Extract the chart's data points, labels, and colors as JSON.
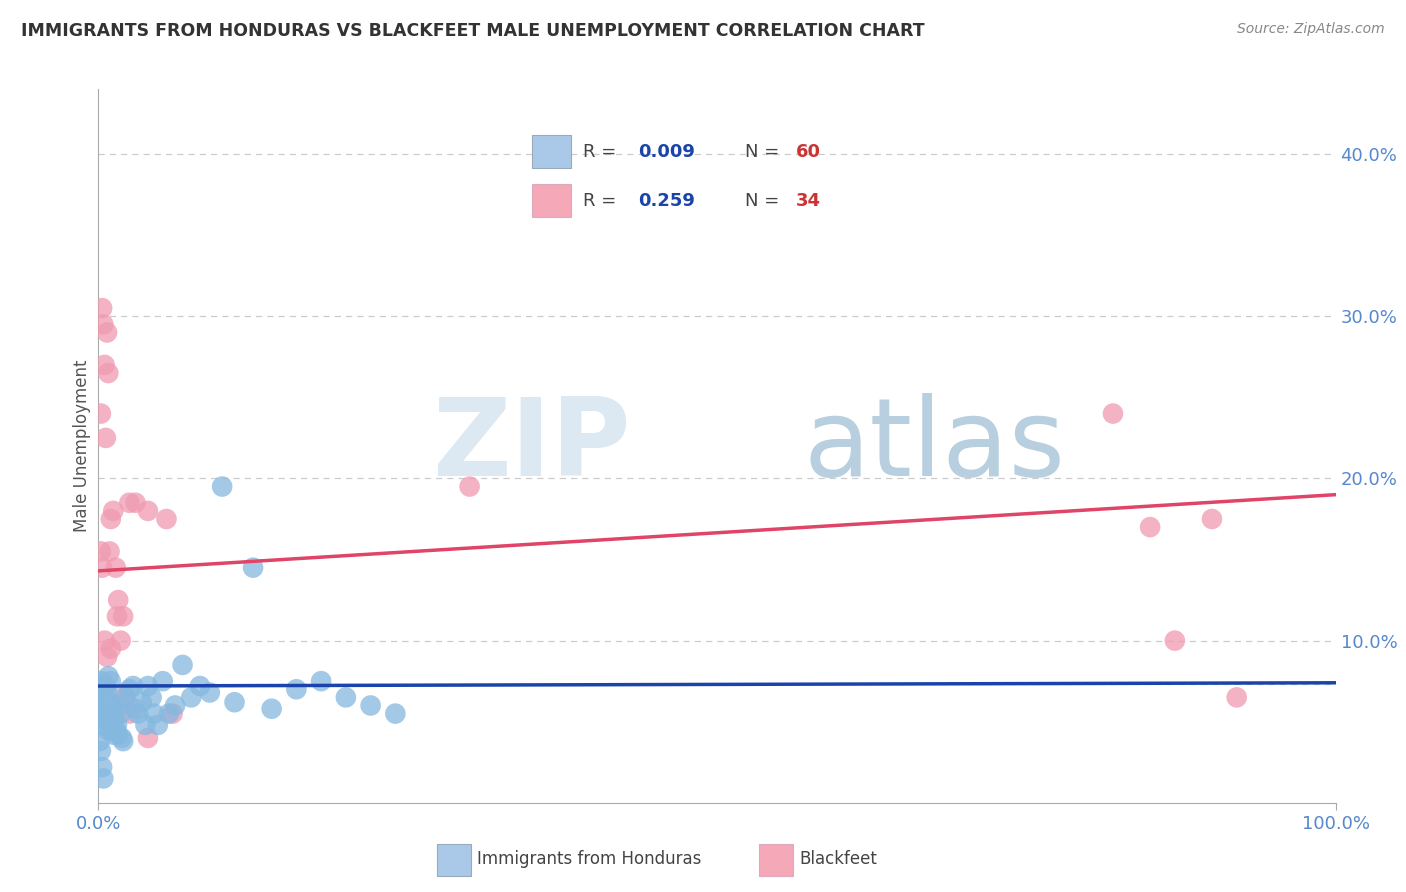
{
  "title": "IMMIGRANTS FROM HONDURAS VS BLACKFEET MALE UNEMPLOYMENT CORRELATION CHART",
  "source_text": "Source: ZipAtlas.com",
  "ylabel": "Male Unemployment",
  "xlim": [
    0,
    1.0
  ],
  "ylim": [
    0.0,
    0.44
  ],
  "legend_r1": "R = ",
  "legend_v1": "0.009",
  "legend_n1": "N = ",
  "legend_n1v": "60",
  "legend_r2": "R = ",
  "legend_v2": "0.259",
  "legend_n2": "N = ",
  "legend_n2v": "34",
  "cat1": "Immigrants from Honduras",
  "cat2": "Blackfeet",
  "blue_patch_color": "#aac8e8",
  "pink_patch_color": "#f4a8b8",
  "blue_color": "#85b8df",
  "pink_color": "#f09ab0",
  "blue_line_color": "#1a44aa",
  "pink_line_color": "#e04466",
  "axis_color": "#5588cc",
  "grid_color": "#cccccc",
  "title_color": "#333333",
  "source_color": "#888888",
  "watermark_zip_color": "#dce8f2",
  "watermark_atlas_color": "#b8cfdf",
  "blue_scatter_x": [
    0.001,
    0.002,
    0.002,
    0.003,
    0.003,
    0.004,
    0.004,
    0.005,
    0.005,
    0.006,
    0.006,
    0.007,
    0.007,
    0.008,
    0.008,
    0.009,
    0.01,
    0.01,
    0.011,
    0.012,
    0.012,
    0.013,
    0.014,
    0.015,
    0.016,
    0.017,
    0.018,
    0.019,
    0.02,
    0.022,
    0.025,
    0.028,
    0.03,
    0.032,
    0.035,
    0.038,
    0.04,
    0.043,
    0.045,
    0.048,
    0.052,
    0.057,
    0.062,
    0.068,
    0.075,
    0.082,
    0.09,
    0.1,
    0.11,
    0.125,
    0.14,
    0.16,
    0.18,
    0.2,
    0.22,
    0.24,
    0.001,
    0.002,
    0.003,
    0.004
  ],
  "blue_scatter_y": [
    0.068,
    0.072,
    0.06,
    0.075,
    0.055,
    0.07,
    0.048,
    0.065,
    0.058,
    0.072,
    0.052,
    0.068,
    0.045,
    0.078,
    0.05,
    0.062,
    0.055,
    0.075,
    0.048,
    0.058,
    0.042,
    0.052,
    0.045,
    0.048,
    0.042,
    0.06,
    0.055,
    0.04,
    0.038,
    0.065,
    0.07,
    0.072,
    0.058,
    0.055,
    0.062,
    0.048,
    0.072,
    0.065,
    0.055,
    0.048,
    0.075,
    0.055,
    0.06,
    0.085,
    0.065,
    0.072,
    0.068,
    0.195,
    0.062,
    0.145,
    0.058,
    0.07,
    0.075,
    0.065,
    0.06,
    0.055,
    0.038,
    0.032,
    0.022,
    0.015
  ],
  "pink_scatter_x": [
    0.002,
    0.003,
    0.004,
    0.005,
    0.006,
    0.007,
    0.008,
    0.009,
    0.01,
    0.012,
    0.014,
    0.016,
    0.018,
    0.02,
    0.025,
    0.03,
    0.04,
    0.055,
    0.3,
    0.82,
    0.85,
    0.87,
    0.9,
    0.92,
    0.002,
    0.003,
    0.005,
    0.007,
    0.01,
    0.015,
    0.02,
    0.025,
    0.04,
    0.06
  ],
  "pink_scatter_y": [
    0.24,
    0.305,
    0.295,
    0.27,
    0.225,
    0.29,
    0.265,
    0.155,
    0.175,
    0.18,
    0.145,
    0.125,
    0.1,
    0.115,
    0.185,
    0.185,
    0.18,
    0.175,
    0.195,
    0.24,
    0.17,
    0.1,
    0.175,
    0.065,
    0.155,
    0.145,
    0.1,
    0.09,
    0.095,
    0.115,
    0.065,
    0.055,
    0.04,
    0.055
  ],
  "blue_trend_x": [
    0.0,
    1.0
  ],
  "blue_trend_y": [
    0.072,
    0.074
  ],
  "pink_trend_x": [
    0.0,
    1.0
  ],
  "pink_trend_y": [
    0.143,
    0.19
  ],
  "hline_y": 0.073,
  "ytick_positions": [
    0.1,
    0.2,
    0.3,
    0.4
  ],
  "ytick_labels": [
    "10.0%",
    "20.0%",
    "30.0%",
    "40.0%"
  ]
}
